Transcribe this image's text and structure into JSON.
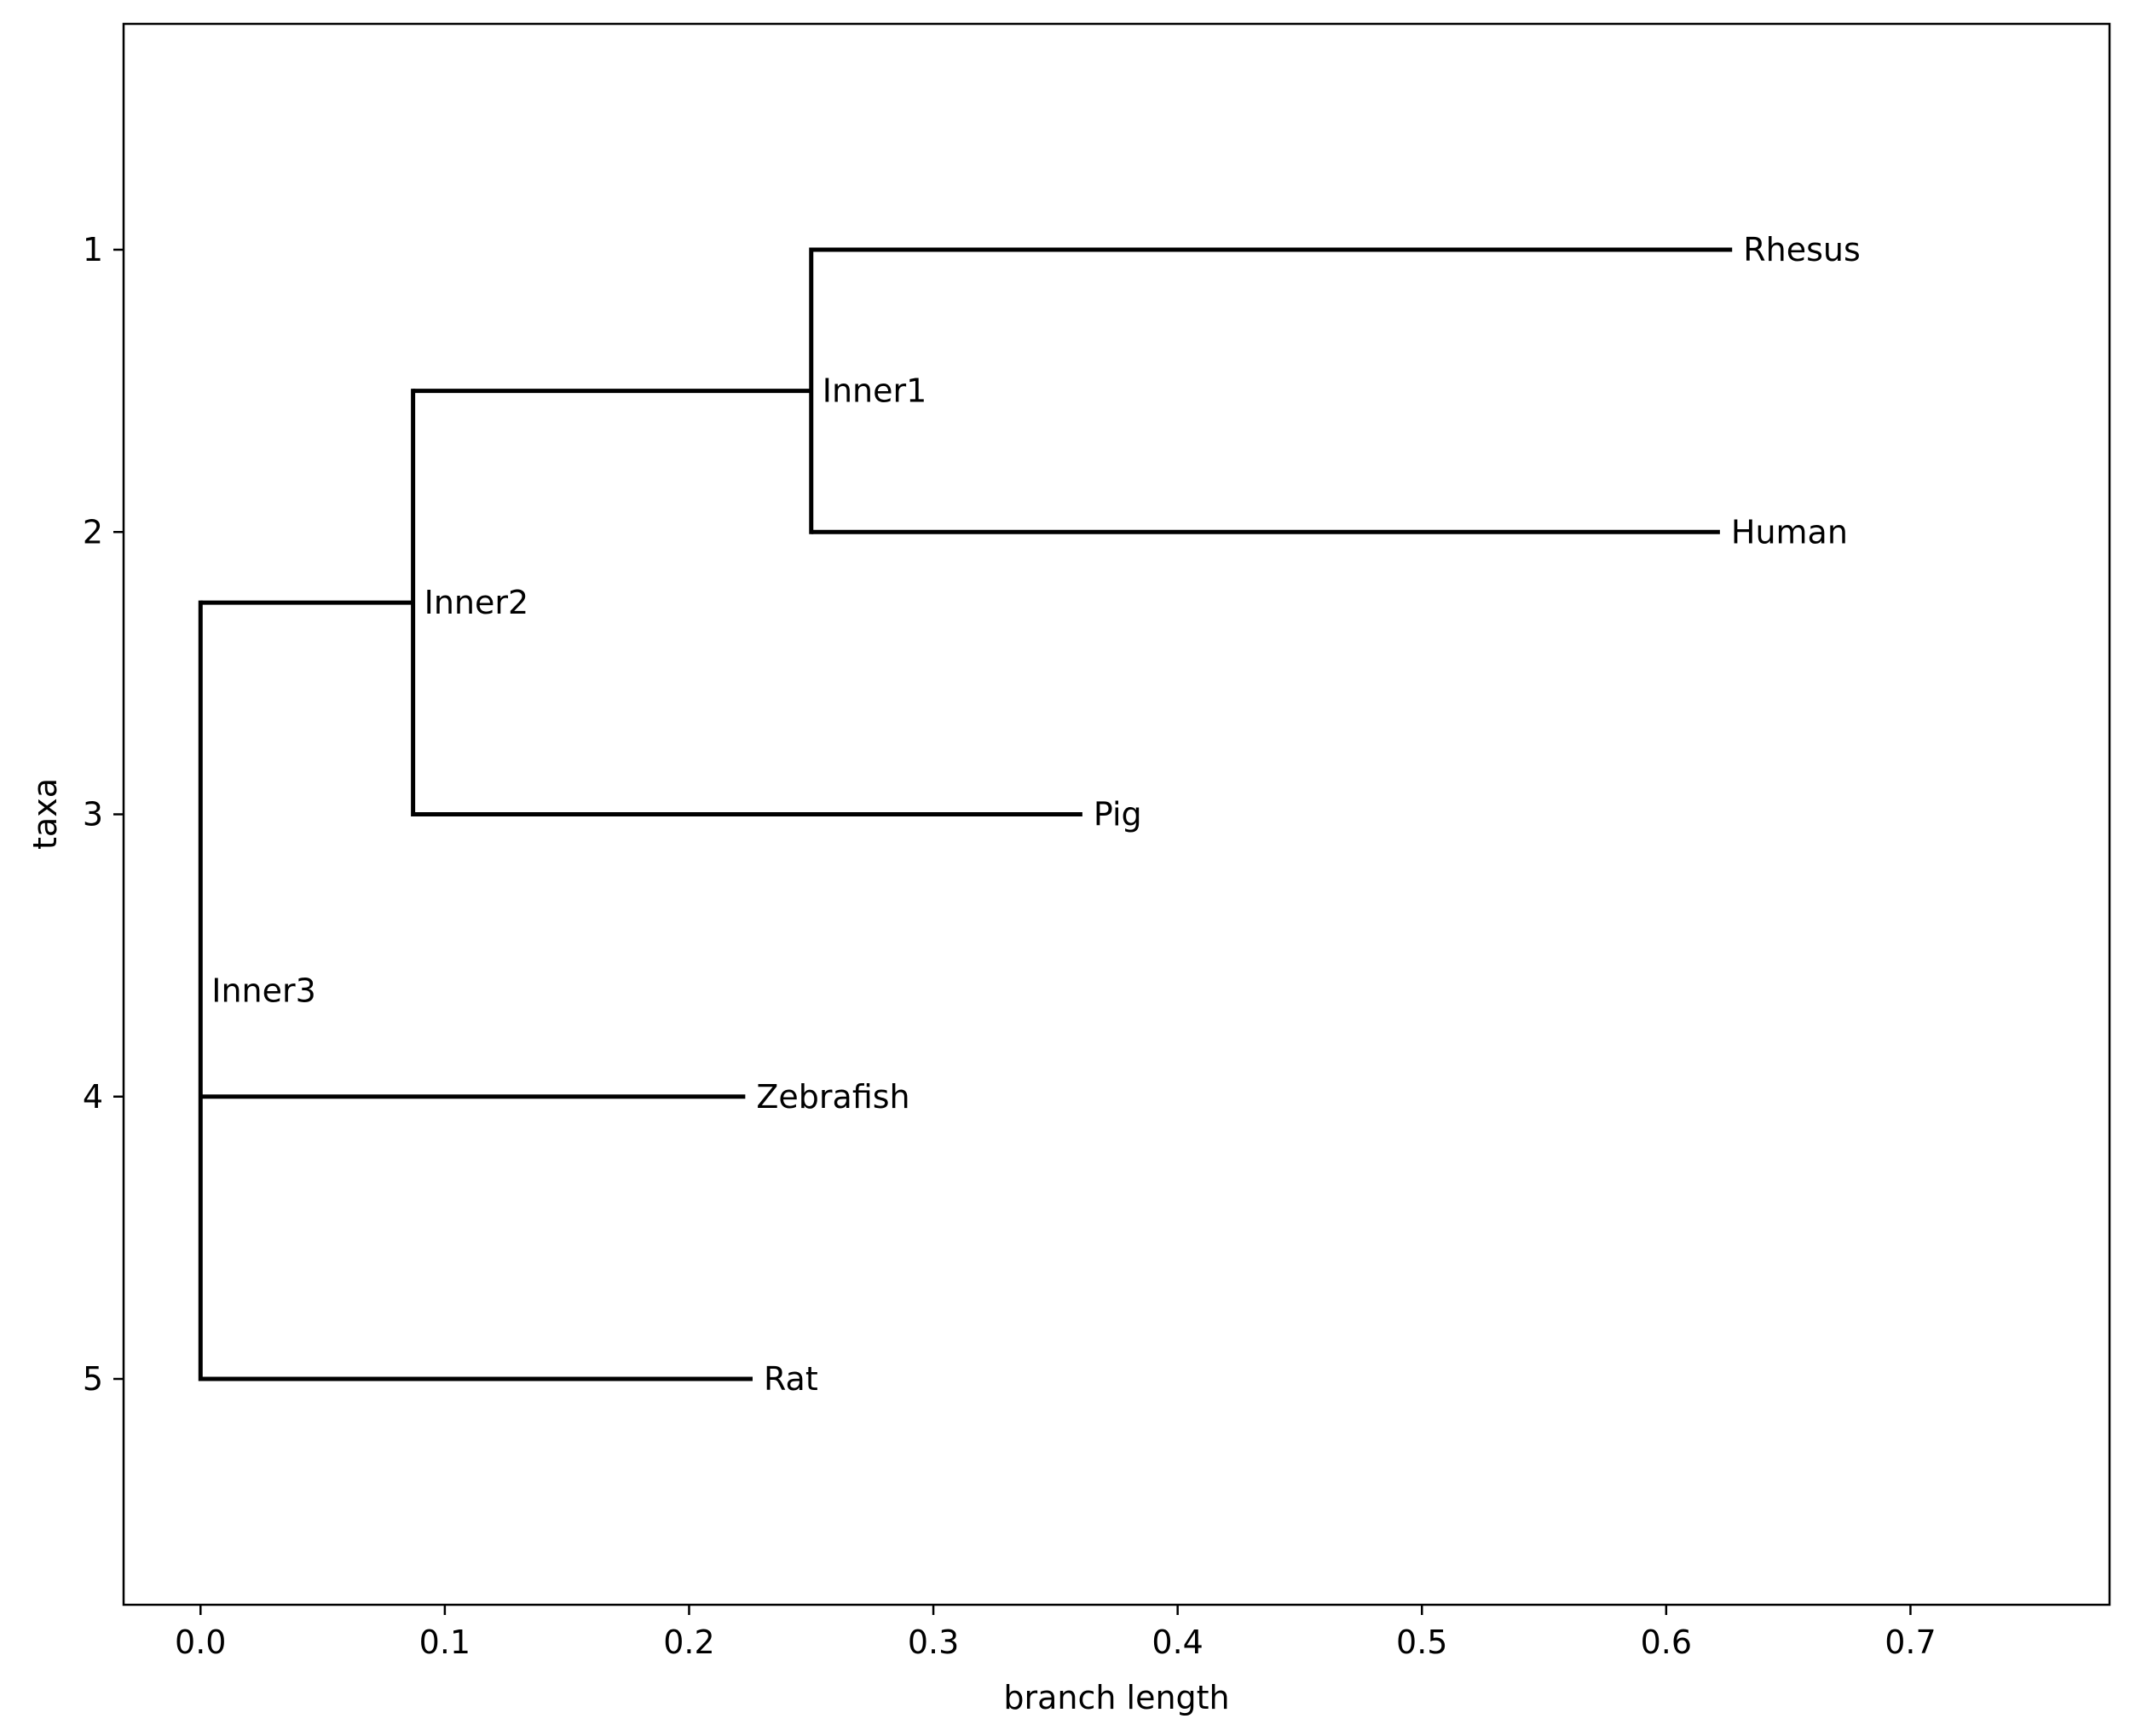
{
  "chart_data": {
    "type": "tree",
    "title": "",
    "xlabel": "branch length",
    "ylabel": "taxa",
    "xlim": [
      -0.0315,
      0.7815
    ],
    "ylim": [
      5.8,
      0.2
    ],
    "grid": false,
    "x_ticks": [
      {
        "value": 0.0,
        "label": "0.0"
      },
      {
        "value": 0.1,
        "label": "0.1"
      },
      {
        "value": 0.2,
        "label": "0.2"
      },
      {
        "value": 0.3,
        "label": "0.3"
      },
      {
        "value": 0.4,
        "label": "0.4"
      },
      {
        "value": 0.5,
        "label": "0.5"
      },
      {
        "value": 0.6,
        "label": "0.6"
      },
      {
        "value": 0.7,
        "label": "0.7"
      }
    ],
    "y_ticks": [
      {
        "value": 1,
        "label": "1"
      },
      {
        "value": 2,
        "label": "2"
      },
      {
        "value": 3,
        "label": "3"
      },
      {
        "value": 4,
        "label": "4"
      },
      {
        "value": 5,
        "label": "5"
      }
    ],
    "nodes": [
      {
        "name": "Inner3",
        "x": 0.0,
        "y": 3.625,
        "parent": null
      },
      {
        "name": "Inner2",
        "x": 0.087,
        "y": 2.25,
        "parent": "Inner3"
      },
      {
        "name": "Inner1",
        "x": 0.25,
        "y": 1.5,
        "parent": "Inner2"
      },
      {
        "name": "Rhesus",
        "x": 0.627,
        "y": 1,
        "parent": "Inner1"
      },
      {
        "name": "Human",
        "x": 0.622,
        "y": 2,
        "parent": "Inner1"
      },
      {
        "name": "Pig",
        "x": 0.361,
        "y": 3,
        "parent": "Inner2"
      },
      {
        "name": "Zebrafish",
        "x": 0.223,
        "y": 4,
        "parent": "Inner3"
      },
      {
        "name": "Rat",
        "x": 0.226,
        "y": 5,
        "parent": "Inner3"
      }
    ],
    "line_color": "#000000"
  }
}
